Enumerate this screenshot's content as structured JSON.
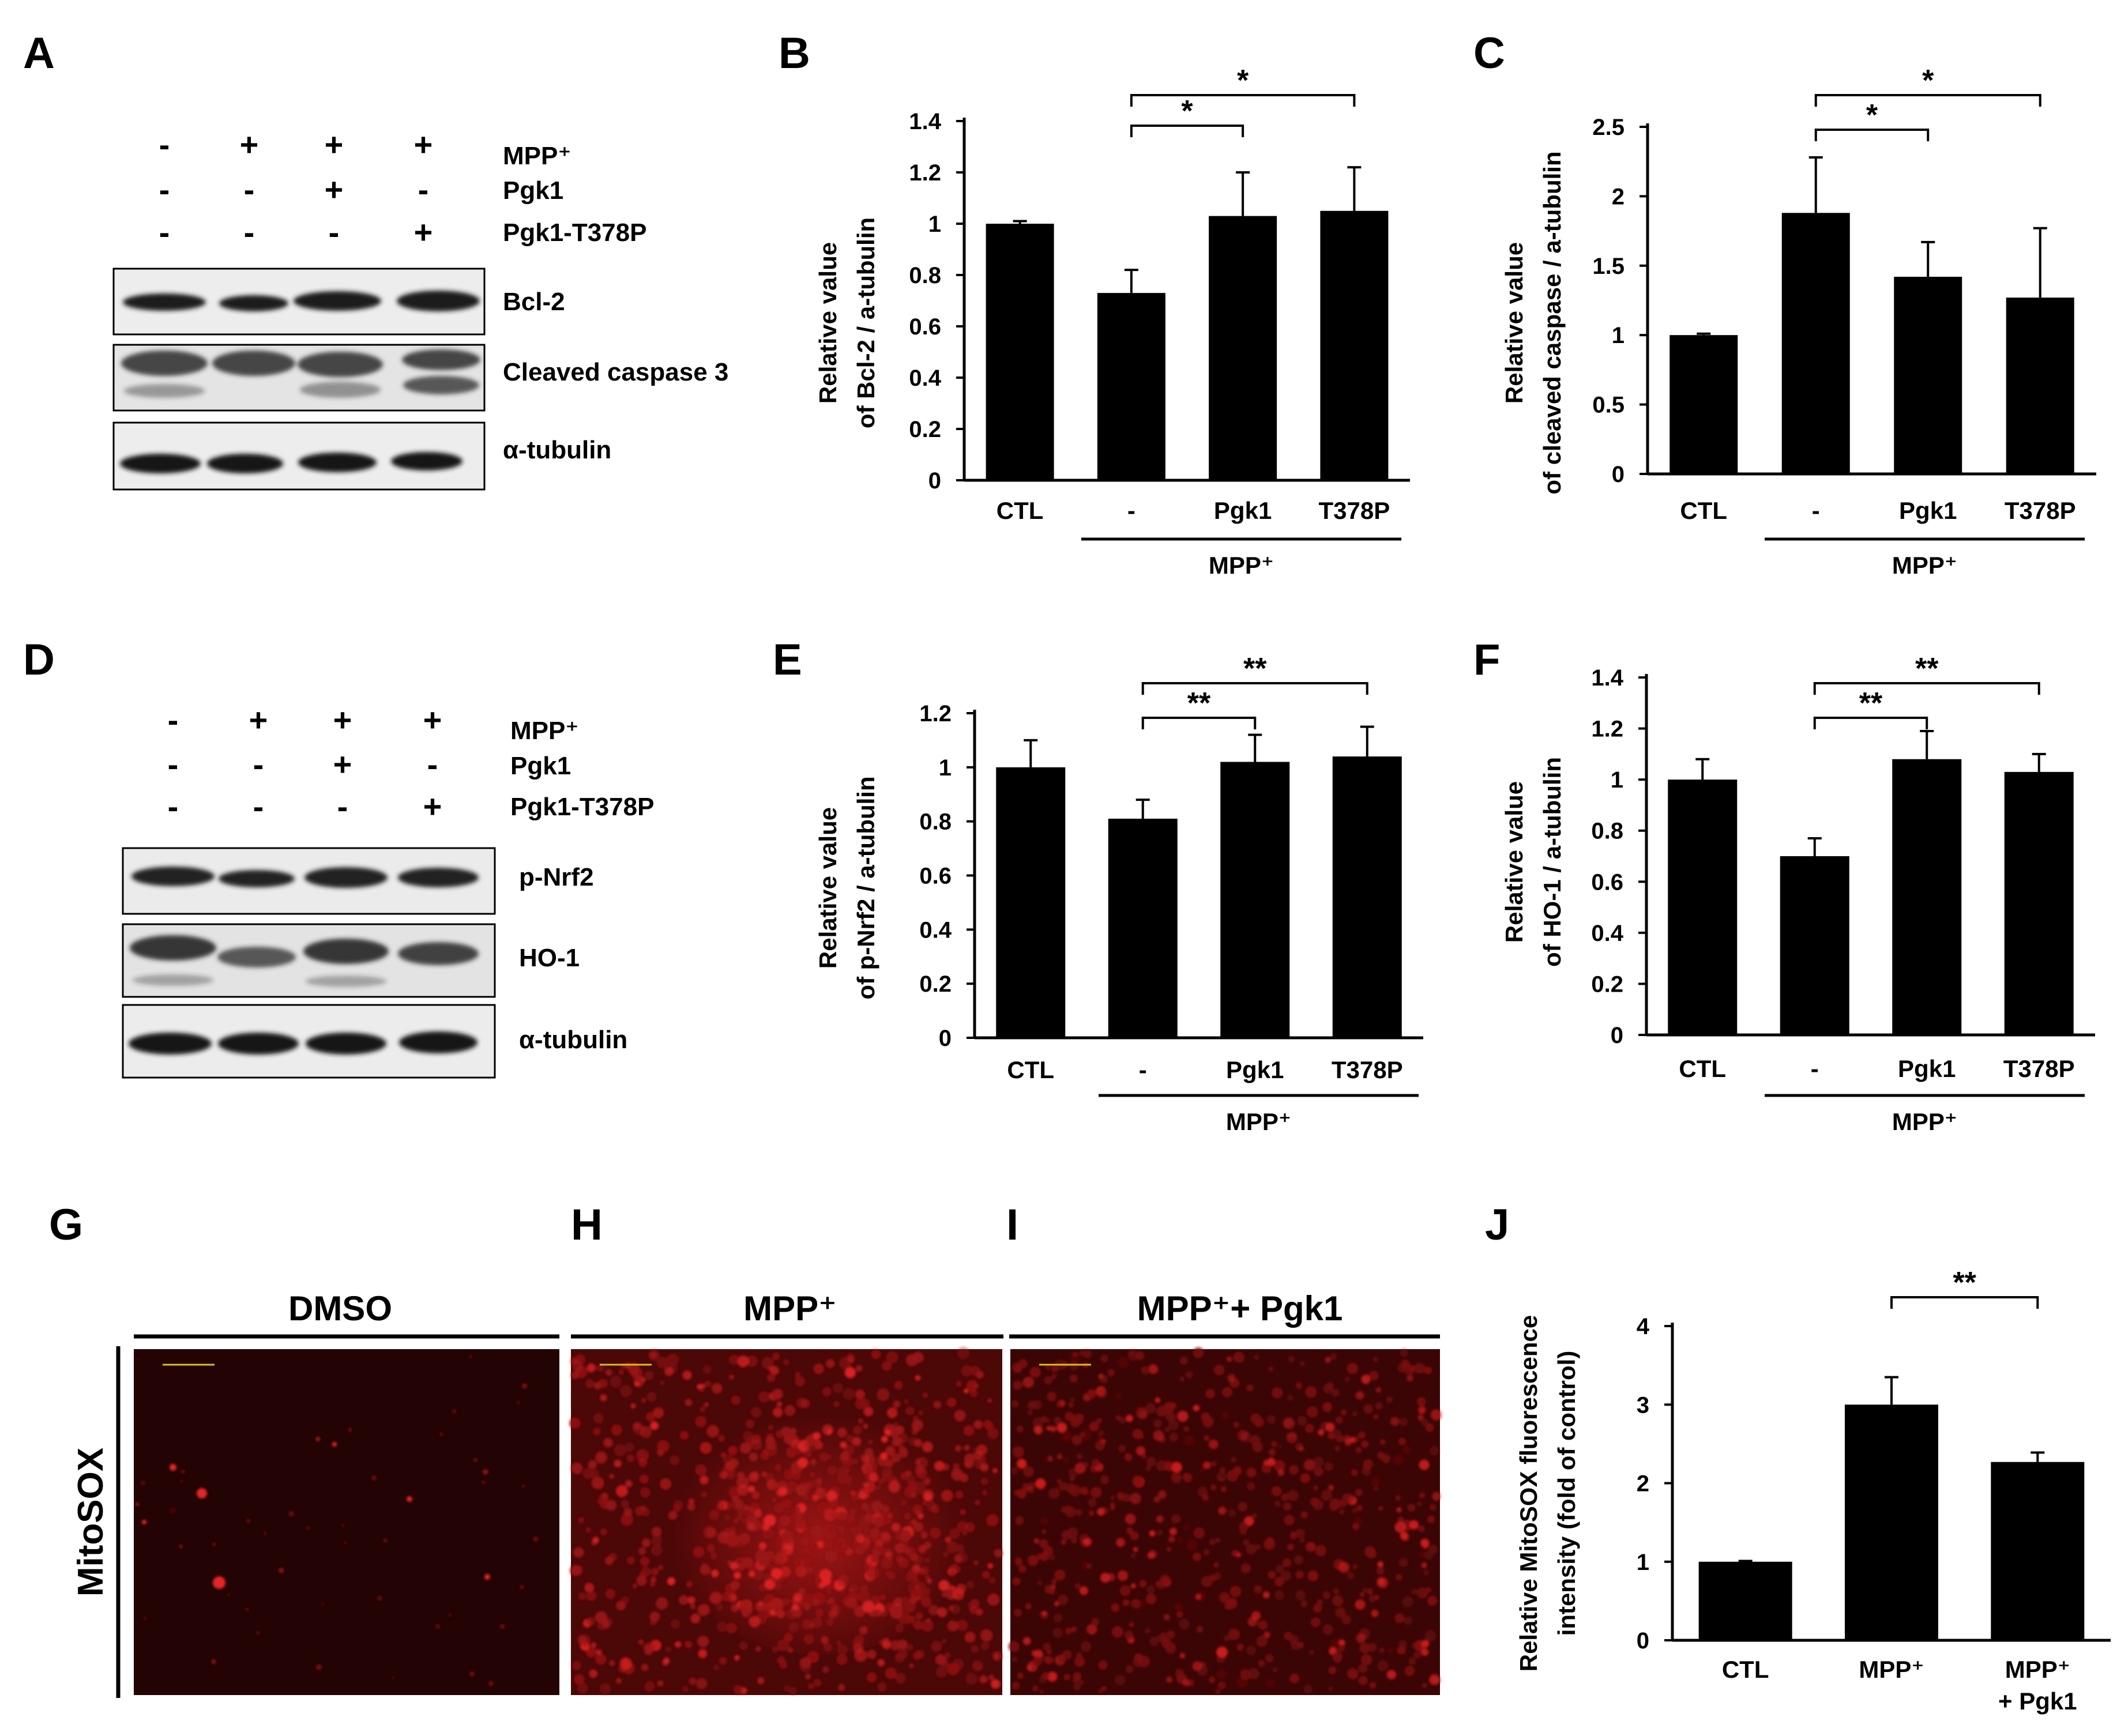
{
  "panels": {
    "A": {
      "label": "A",
      "lanes": [
        {
          "mpp": "-",
          "pgk1": "-",
          "t378p": "-"
        },
        {
          "mpp": "+",
          "pgk1": "-",
          "t378p": "-"
        },
        {
          "mpp": "+",
          "pgk1": "+",
          "t378p": "-"
        },
        {
          "mpp": "+",
          "pgk1": "-",
          "t378p": "+"
        }
      ],
      "condition_labels": [
        "MPP⁺",
        "Pgk1",
        "Pgk1-T378P"
      ],
      "blots": [
        "Bcl-2",
        "Cleaved caspase 3",
        "α-tubulin"
      ]
    },
    "D": {
      "label": "D",
      "lanes": [
        {
          "mpp": "-",
          "pgk1": "-",
          "t378p": "-"
        },
        {
          "mpp": "+",
          "pgk1": "-",
          "t378p": "-"
        },
        {
          "mpp": "+",
          "pgk1": "+",
          "t378p": "-"
        },
        {
          "mpp": "+",
          "pgk1": "-",
          "t378p": "+"
        }
      ],
      "condition_labels": [
        "MPP⁺",
        "Pgk1",
        "Pgk1-T378P"
      ],
      "blots": [
        "p-Nrf2",
        "HO-1",
        "α-tubulin"
      ]
    },
    "G": {
      "label": "G"
    },
    "H": {
      "label": "H"
    },
    "I": {
      "label": "I"
    },
    "microscopy": {
      "row_label": "MitoSOX",
      "headers": [
        "DMSO",
        "MPP⁺",
        "MPP⁺+ Pgk1"
      ],
      "image_tone": "#b01010"
    }
  },
  "chart_data": [
    {
      "id": "B",
      "label": "B",
      "type": "bar",
      "categories": [
        "CTL",
        "-",
        "Pgk1",
        "T378P"
      ],
      "values": [
        1.0,
        0.73,
        1.03,
        1.05
      ],
      "errors": [
        0.01,
        0.09,
        0.17,
        0.17
      ],
      "ylim": [
        0,
        1.4
      ],
      "yticks": [
        "0",
        "0.2",
        "0.4",
        "0.6",
        "0.8",
        "1",
        "1.2",
        "1.4"
      ],
      "ylabel_lines": [
        "Relative value",
        "of Bcl-2 / a-tubulin"
      ],
      "group_label": "MPP⁺",
      "significance": [
        {
          "from": 1,
          "to": 2,
          "label": "*"
        },
        {
          "from": 1,
          "to": 3,
          "label": "*"
        }
      ],
      "bar_color": "#000000"
    },
    {
      "id": "C",
      "label": "C",
      "type": "bar",
      "categories": [
        "CTL",
        "-",
        "Pgk1",
        "T378P"
      ],
      "values": [
        1.0,
        1.88,
        1.42,
        1.27
      ],
      "errors": [
        0.01,
        0.4,
        0.25,
        0.5
      ],
      "ylim": [
        0,
        2.5
      ],
      "yticks": [
        "0",
        "0.5",
        "1",
        "1.5",
        "2",
        "2.5"
      ],
      "ylabel_lines": [
        "Relative value",
        "of cleaved caspase  / a-tubulin"
      ],
      "group_label": "MPP⁺",
      "significance": [
        {
          "from": 1,
          "to": 2,
          "label": "*"
        },
        {
          "from": 1,
          "to": 3,
          "label": "*"
        }
      ],
      "bar_color": "#000000"
    },
    {
      "id": "E",
      "label": "E",
      "type": "bar",
      "categories": [
        "CTL",
        "-",
        "Pgk1",
        "T378P"
      ],
      "values": [
        1.0,
        0.81,
        1.02,
        1.04
      ],
      "errors": [
        0.1,
        0.07,
        0.1,
        0.11
      ],
      "ylim": [
        0,
        1.2
      ],
      "yticks": [
        "0",
        "0.2",
        "0.4",
        "0.6",
        "0.8",
        "1",
        "1.2"
      ],
      "ylabel_lines": [
        "Relative value",
        "of p-Nrf2 / a-tubulin"
      ],
      "group_label": "MPP⁺",
      "significance": [
        {
          "from": 1,
          "to": 2,
          "label": "**"
        },
        {
          "from": 1,
          "to": 3,
          "label": "**"
        }
      ],
      "bar_color": "#000000"
    },
    {
      "id": "F",
      "label": "F",
      "type": "bar",
      "categories": [
        "CTL",
        "-",
        "Pgk1",
        "T378P"
      ],
      "values": [
        1.0,
        0.7,
        1.08,
        1.03
      ],
      "errors": [
        0.08,
        0.07,
        0.11,
        0.07
      ],
      "ylim": [
        0,
        1.4
      ],
      "yticks": [
        "0",
        "0.2",
        "0.4",
        "0.6",
        "0.8",
        "1",
        "1.2",
        "1.4"
      ],
      "ylabel_lines": [
        "Relative value",
        "of HO-1 / a-tubulin"
      ],
      "group_label": "MPP⁺",
      "significance": [
        {
          "from": 1,
          "to": 2,
          "label": "**"
        },
        {
          "from": 1,
          "to": 3,
          "label": "**"
        }
      ],
      "bar_color": "#000000"
    },
    {
      "id": "J",
      "label": "J",
      "type": "bar",
      "categories": [
        [
          "CTL"
        ],
        [
          "MPP⁺"
        ],
        [
          "MPP⁺",
          "+ Pgk1"
        ]
      ],
      "values": [
        1.0,
        3.0,
        2.27
      ],
      "errors": [
        0.01,
        0.35,
        0.12
      ],
      "ylim": [
        0,
        4
      ],
      "yticks": [
        "0",
        "1",
        "2",
        "3",
        "4"
      ],
      "ylabel_lines": [
        "Relative MitoSOX fluorescence",
        "intensity (fold of control)"
      ],
      "group_label": "",
      "significance": [
        {
          "from": 1,
          "to": 2,
          "label": "**"
        }
      ],
      "bar_color": "#000000"
    }
  ]
}
